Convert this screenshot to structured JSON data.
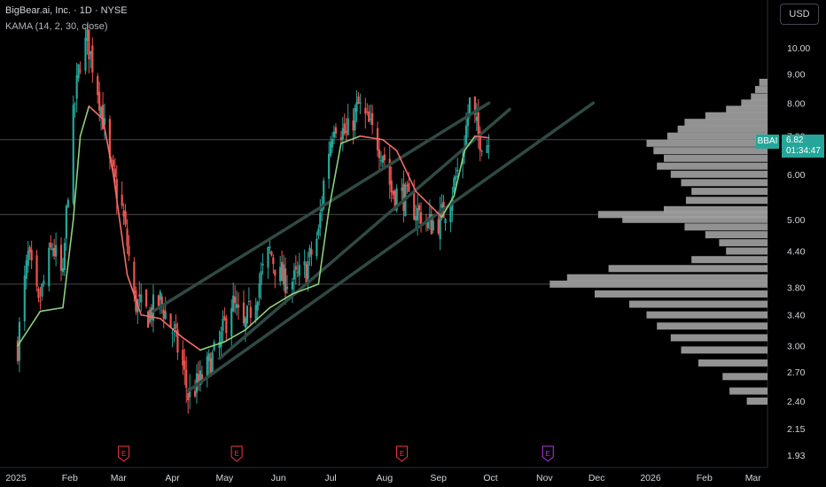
{
  "header": {
    "title": "BigBear.ai, Inc. · 1D · NYSE",
    "indicator": "KAMA (14, 2, 30, close)"
  },
  "currency_button": "USD",
  "price_label": {
    "symbol": "BBAI",
    "price": "6.82",
    "countdown": "01:34:47"
  },
  "colors": {
    "up": "#26a69a",
    "down": "#ef5350",
    "kama_up": "#8bd17c",
    "kama_down": "#f26d6d",
    "channel": "#2f4a44",
    "profile": "#9e9e9e",
    "earnings": "#f23645",
    "earnings_future": "#b03de0"
  },
  "chart_data": {
    "type": "candlestick",
    "title": "BigBear.ai, Inc. · 1D · NYSE",
    "indicator": "KAMA (14, 2, 30, close)",
    "y_scale": "log",
    "y_ticks": [
      "10.00",
      "9.00",
      "8.00",
      "7.00",
      "6.00",
      "5.00",
      "4.40",
      "3.80",
      "3.40",
      "3.00",
      "2.70",
      "2.40",
      "2.15",
      "1.93"
    ],
    "x_ticks": [
      "2025",
      "Feb",
      "Mar",
      "Apr",
      "May",
      "Jun",
      "Jul",
      "Aug",
      "Sep",
      "Oct",
      "Nov",
      "Dec",
      "2026",
      "Feb",
      "Mar"
    ],
    "last_price": 6.82,
    "price_path": [
      [
        "2025-01-02",
        3.0
      ],
      [
        "2025-01-08",
        4.3
      ],
      [
        "2025-01-14",
        3.5
      ],
      [
        "2025-01-22",
        4.5
      ],
      [
        "2025-01-28",
        3.9
      ],
      [
        "2025-02-03",
        7.5
      ],
      [
        "2025-02-07",
        9.6
      ],
      [
        "2025-02-11",
        10.3
      ],
      [
        "2025-02-18",
        8.2
      ],
      [
        "2025-02-24",
        6.2
      ],
      [
        "2025-03-03",
        5.2
      ],
      [
        "2025-03-10",
        3.6
      ],
      [
        "2025-03-18",
        3.4
      ],
      [
        "2025-03-25",
        3.6
      ],
      [
        "2025-04-01",
        3.2
      ],
      [
        "2025-04-07",
        2.75
      ],
      [
        "2025-04-10",
        2.45
      ],
      [
        "2025-04-17",
        2.6
      ],
      [
        "2025-04-28",
        3.0
      ],
      [
        "2025-05-05",
        3.6
      ],
      [
        "2025-05-12",
        3.2
      ],
      [
        "2025-05-19",
        3.7
      ],
      [
        "2025-05-27",
        4.4
      ],
      [
        "2025-06-02",
        3.95
      ],
      [
        "2025-06-10",
        3.9
      ],
      [
        "2025-06-17",
        4.1
      ],
      [
        "2025-06-24",
        4.7
      ],
      [
        "2025-06-27",
        5.8
      ],
      [
        "2025-07-03",
        7.5
      ],
      [
        "2025-07-10",
        7.0
      ],
      [
        "2025-07-17",
        7.9
      ],
      [
        "2025-07-24",
        7.2
      ],
      [
        "2025-07-31",
        6.6
      ],
      [
        "2025-08-05",
        5.6
      ],
      [
        "2025-08-12",
        5.5
      ],
      [
        "2025-08-19",
        5.2
      ],
      [
        "2025-08-26",
        4.9
      ],
      [
        "2025-09-02",
        5.0
      ],
      [
        "2025-09-08",
        5.5
      ],
      [
        "2025-09-15",
        6.5
      ],
      [
        "2025-09-19",
        8.0
      ],
      [
        "2025-09-24",
        7.0
      ],
      [
        "2025-09-30",
        6.82
      ]
    ],
    "kama": [
      [
        "2025-01-02",
        3.0
      ],
      [
        "2025-01-15",
        3.45
      ],
      [
        "2025-01-28",
        3.5
      ],
      [
        "2025-02-03",
        5.0
      ],
      [
        "2025-02-07",
        7.0
      ],
      [
        "2025-02-12",
        7.9
      ],
      [
        "2025-02-20",
        7.5
      ],
      [
        "2025-02-26",
        6.0
      ],
      [
        "2025-03-06",
        4.0
      ],
      [
        "2025-03-14",
        3.4
      ],
      [
        "2025-03-25",
        3.35
      ],
      [
        "2025-04-07",
        3.1
      ],
      [
        "2025-04-17",
        2.95
      ],
      [
        "2025-05-01",
        3.05
      ],
      [
        "2025-05-13",
        3.2
      ],
      [
        "2025-05-27",
        3.5
      ],
      [
        "2025-06-09",
        3.7
      ],
      [
        "2025-06-24",
        3.85
      ],
      [
        "2025-06-30",
        5.2
      ],
      [
        "2025-07-07",
        6.8
      ],
      [
        "2025-07-18",
        7.0
      ],
      [
        "2025-07-31",
        6.9
      ],
      [
        "2025-08-08",
        6.6
      ],
      [
        "2025-08-19",
        5.6
      ],
      [
        "2025-09-03",
        5.05
      ],
      [
        "2025-09-10",
        5.5
      ],
      [
        "2025-09-16",
        6.6
      ],
      [
        "2025-09-22",
        7.0
      ],
      [
        "2025-09-30",
        6.95
      ]
    ],
    "channel_lines": [
      {
        "start": [
          "2025-03-21",
          3.45
        ],
        "end": [
          "2025-09-30",
          8.0
        ]
      },
      {
        "start": [
          "2025-04-28",
          2.85
        ],
        "end": [
          "2025-10-12",
          7.8
        ]
      },
      {
        "start": [
          "2025-04-10",
          2.5
        ],
        "end": [
          "2025-11-29",
          8.0
        ]
      }
    ],
    "horizontal_levels": [
      6.9,
      5.1,
      3.85
    ],
    "earnings_markers": [
      {
        "date": "2025-03-04",
        "label": "E"
      },
      {
        "date": "2025-05-08",
        "label": "E"
      },
      {
        "date": "2025-08-11",
        "label": "E"
      },
      {
        "date": "2025-11-03",
        "label": "E",
        "upcoming": true
      }
    ],
    "volume_profile": [
      [
        8.7,
        12
      ],
      [
        8.45,
        18
      ],
      [
        8.2,
        24
      ],
      [
        8.0,
        38
      ],
      [
        7.8,
        60
      ],
      [
        7.6,
        90
      ],
      [
        7.4,
        120
      ],
      [
        7.2,
        130
      ],
      [
        7.0,
        145
      ],
      [
        6.8,
        175
      ],
      [
        6.6,
        165
      ],
      [
        6.4,
        150
      ],
      [
        6.2,
        160
      ],
      [
        6.0,
        140
      ],
      [
        5.8,
        125
      ],
      [
        5.6,
        110
      ],
      [
        5.4,
        118
      ],
      [
        5.2,
        150
      ],
      [
        5.1,
        245
      ],
      [
        5.0,
        210
      ],
      [
        4.85,
        120
      ],
      [
        4.7,
        90
      ],
      [
        4.55,
        70
      ],
      [
        4.4,
        60
      ],
      [
        4.25,
        110
      ],
      [
        4.1,
        230
      ],
      [
        3.95,
        290
      ],
      [
        3.85,
        315
      ],
      [
        3.7,
        250
      ],
      [
        3.55,
        200
      ],
      [
        3.4,
        175
      ],
      [
        3.25,
        160
      ],
      [
        3.1,
        140
      ],
      [
        2.95,
        125
      ],
      [
        2.8,
        100
      ],
      [
        2.65,
        65
      ],
      [
        2.5,
        55
      ],
      [
        2.4,
        30
      ]
    ]
  }
}
